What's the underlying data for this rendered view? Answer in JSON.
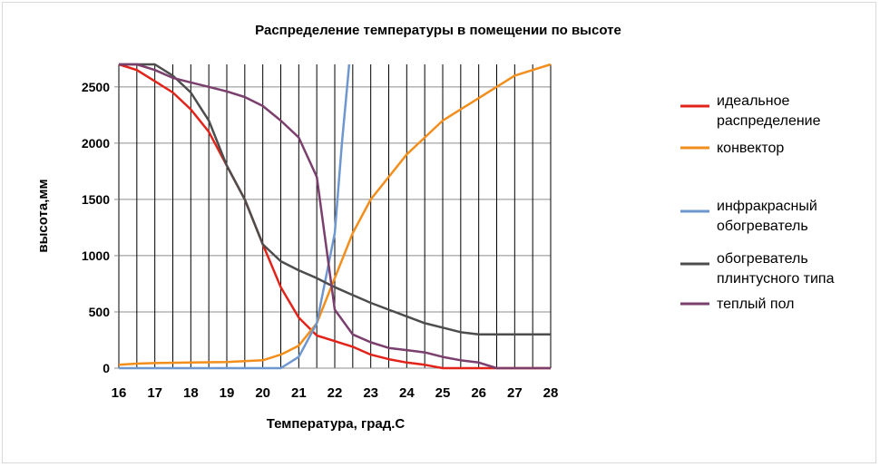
{
  "chart_data": {
    "type": "line",
    "title": "Распределение температуры в помещении по высоте",
    "xlabel": "Температура, град.С",
    "ylabel": "высота,мм",
    "xlim": [
      16,
      28
    ],
    "ylim": [
      0,
      2700
    ],
    "x_ticks": [
      16,
      17,
      18,
      19,
      20,
      21,
      22,
      23,
      24,
      25,
      26,
      27,
      28
    ],
    "y_ticks": [
      0,
      500,
      1000,
      1500,
      2000,
      2500
    ],
    "grid": {
      "horizontal": true,
      "vertical": true,
      "vertical_step": 0.5
    },
    "legend_position": "right",
    "series": [
      {
        "name": "идеальное распределение",
        "color": "#e2231a",
        "points": [
          [
            16,
            2700
          ],
          [
            16.5,
            2650
          ],
          [
            17,
            2550
          ],
          [
            17.5,
            2450
          ],
          [
            18,
            2300
          ],
          [
            18.5,
            2100
          ],
          [
            19,
            1800
          ],
          [
            19.5,
            1500
          ],
          [
            20,
            1100
          ],
          [
            20.5,
            720
          ],
          [
            21,
            450
          ],
          [
            21.5,
            290
          ],
          [
            22,
            240
          ],
          [
            22.5,
            190
          ],
          [
            23,
            120
          ],
          [
            23.5,
            80
          ],
          [
            24,
            50
          ],
          [
            24.5,
            30
          ],
          [
            25,
            0
          ],
          [
            26,
            0
          ],
          [
            27,
            0
          ],
          [
            28,
            0
          ]
        ]
      },
      {
        "name": "конвектор",
        "color": "#f28e1c",
        "points": [
          [
            16,
            30
          ],
          [
            16.5,
            40
          ],
          [
            17,
            45
          ],
          [
            18,
            50
          ],
          [
            19,
            55
          ],
          [
            20,
            70
          ],
          [
            20.5,
            120
          ],
          [
            21,
            200
          ],
          [
            21.5,
            400
          ],
          [
            22,
            800
          ],
          [
            22.5,
            1200
          ],
          [
            23,
            1500
          ],
          [
            23.5,
            1700
          ],
          [
            24,
            1900
          ],
          [
            24.5,
            2050
          ],
          [
            25,
            2200
          ],
          [
            25.5,
            2300
          ],
          [
            26,
            2400
          ],
          [
            26.5,
            2500
          ],
          [
            27,
            2600
          ],
          [
            27.5,
            2650
          ],
          [
            28,
            2700
          ]
        ]
      },
      {
        "name": "инфракрасный обогреватель",
        "color": "#6f97cf",
        "points": [
          [
            16,
            0
          ],
          [
            17,
            0
          ],
          [
            18,
            0
          ],
          [
            19,
            0
          ],
          [
            20,
            0
          ],
          [
            20.5,
            0
          ],
          [
            21,
            100
          ],
          [
            21.5,
            400
          ],
          [
            22,
            1200
          ],
          [
            22.2,
            2000
          ],
          [
            22.4,
            2700
          ]
        ]
      },
      {
        "name": "обогреватель плинтусного типа",
        "color": "#4d4d4d",
        "points": [
          [
            16,
            2700
          ],
          [
            16.5,
            2700
          ],
          [
            17,
            2700
          ],
          [
            17.5,
            2600
          ],
          [
            18,
            2450
          ],
          [
            18.5,
            2200
          ],
          [
            19,
            1800
          ],
          [
            19.5,
            1500
          ],
          [
            20,
            1100
          ],
          [
            20.5,
            950
          ],
          [
            21,
            870
          ],
          [
            21.5,
            800
          ],
          [
            22,
            720
          ],
          [
            22.5,
            650
          ],
          [
            23,
            580
          ],
          [
            23.5,
            520
          ],
          [
            24,
            460
          ],
          [
            24.5,
            400
          ],
          [
            25,
            360
          ],
          [
            25.5,
            320
          ],
          [
            26,
            300
          ],
          [
            26.5,
            300
          ],
          [
            27,
            300
          ],
          [
            28,
            300
          ]
        ]
      },
      {
        "name": "теплый пол",
        "color": "#7b3f6e",
        "points": [
          [
            16,
            2700
          ],
          [
            16.5,
            2700
          ],
          [
            17,
            2650
          ],
          [
            17.5,
            2580
          ],
          [
            18,
            2540
          ],
          [
            18.5,
            2500
          ],
          [
            19,
            2460
          ],
          [
            19.5,
            2410
          ],
          [
            20,
            2330
          ],
          [
            20.5,
            2200
          ],
          [
            21,
            2050
          ],
          [
            21.5,
            1700
          ],
          [
            22,
            520
          ],
          [
            22.5,
            300
          ],
          [
            23,
            230
          ],
          [
            23.5,
            180
          ],
          [
            24,
            160
          ],
          [
            24.5,
            140
          ],
          [
            25,
            100
          ],
          [
            25.5,
            70
          ],
          [
            26,
            50
          ],
          [
            26.5,
            0
          ],
          [
            27,
            0
          ],
          [
            28,
            0
          ]
        ]
      }
    ]
  }
}
